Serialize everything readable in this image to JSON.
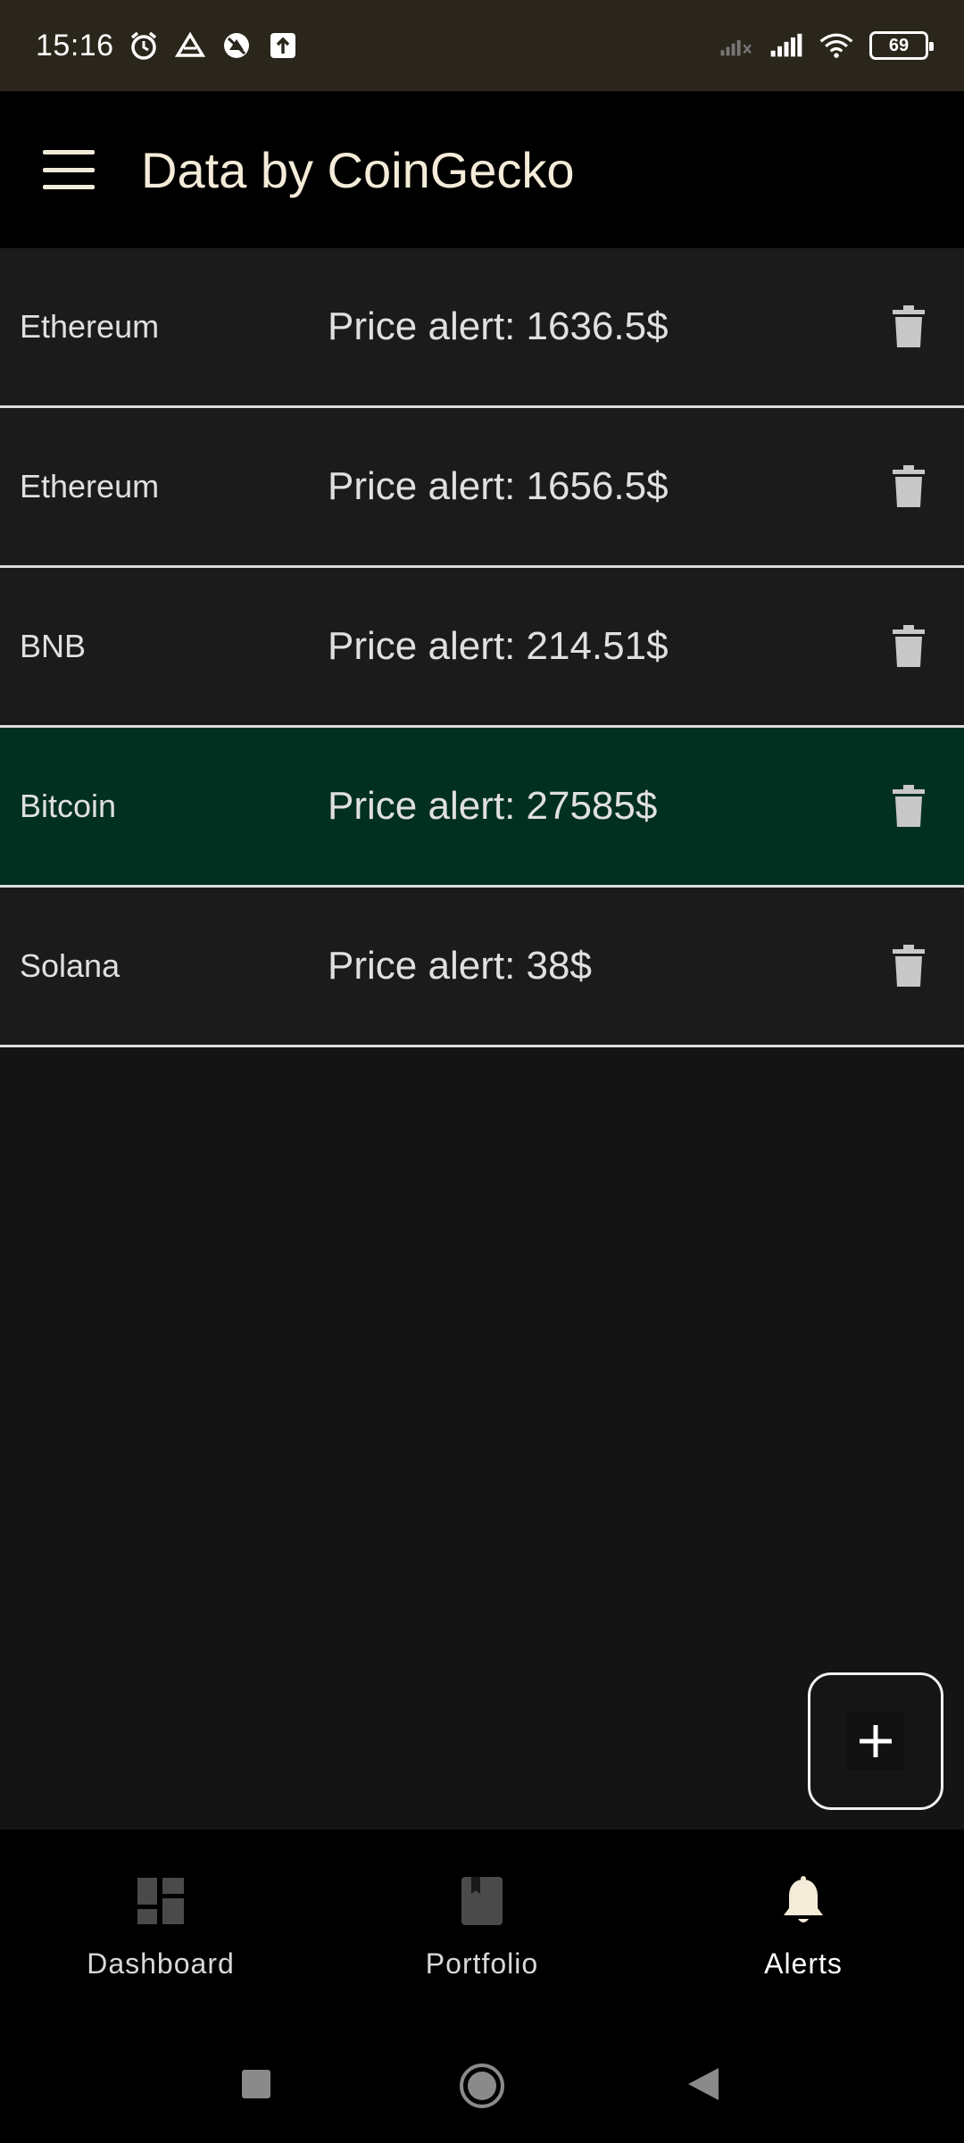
{
  "status_bar": {
    "time": "15:16",
    "battery": "69",
    "icons": [
      "alarm-icon",
      "drive-icon",
      "vpn-icon",
      "upload-icon",
      "signal-off-icon",
      "signal-icon",
      "wifi-icon",
      "battery-icon"
    ]
  },
  "app_bar": {
    "title": "Data by CoinGecko",
    "menu_icon": "hamburger-menu-icon"
  },
  "alerts": [
    {
      "coin": "Ethereum",
      "alert": "Price alert: 1636.5$",
      "highlighted": false
    },
    {
      "coin": "Ethereum",
      "alert": "Price alert: 1656.5$",
      "highlighted": false
    },
    {
      "coin": "BNB",
      "alert": "Price alert: 214.51$",
      "highlighted": false
    },
    {
      "coin": "Bitcoin",
      "alert": "Price alert: 27585$",
      "highlighted": true
    },
    {
      "coin": "Solana",
      "alert": "Price alert: 38$",
      "highlighted": false
    }
  ],
  "fab": {
    "icon": "plus-icon"
  },
  "bottom_nav": {
    "items": [
      {
        "label": "Dashboard",
        "icon": "dashboard-icon",
        "active": false
      },
      {
        "label": "Portfolio",
        "icon": "portfolio-icon",
        "active": false
      },
      {
        "label": "Alerts",
        "icon": "bell-icon",
        "active": true
      }
    ]
  },
  "colors": {
    "status_bar_bg": "#2b261b",
    "app_bar_bg": "#000000",
    "list_bg": "#1b1b1b",
    "highlight_bg": "#023020",
    "page_bg": "#141414"
  }
}
